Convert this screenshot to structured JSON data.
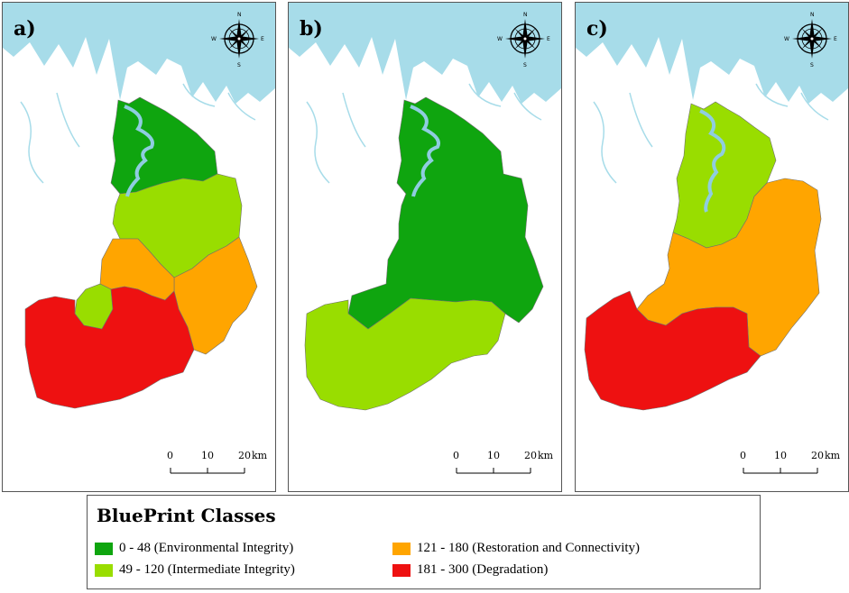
{
  "panels": [
    {
      "label": "a)"
    },
    {
      "label": "b)"
    },
    {
      "label": "c)"
    }
  ],
  "compass": {
    "n": "N",
    "s": "S",
    "e": "E",
    "w": "W"
  },
  "scale_bar": {
    "t0": "0",
    "t1": "10",
    "t2": "20",
    "unit": "km"
  },
  "legend": {
    "title": "BluePrint Classes",
    "classes": [
      {
        "range": "0 - 48",
        "name": "(Environmental Integrity)",
        "text": "0 - 48 (Environmental Integrity)",
        "color": "#0fa50f"
      },
      {
        "range": "49 - 120",
        "name": "(Intermediate Integrity)",
        "text": "49 - 120 (Intermediate Integrity)",
        "color": "#99dd00"
      },
      {
        "range": "121 - 180",
        "name": "(Restoration and Connectivity)",
        "text": "121 - 180 (Restoration and Connectivity)",
        "color": "#ffa500"
      },
      {
        "range": "181 - 300",
        "name": "(Degradation)",
        "text": "181 - 300 (Degradation)",
        "color": "#ee1111"
      }
    ]
  },
  "colors": {
    "sea": "#a7dce9",
    "river": "#8fcde0",
    "land": "#ffffff",
    "border": "#888888"
  }
}
